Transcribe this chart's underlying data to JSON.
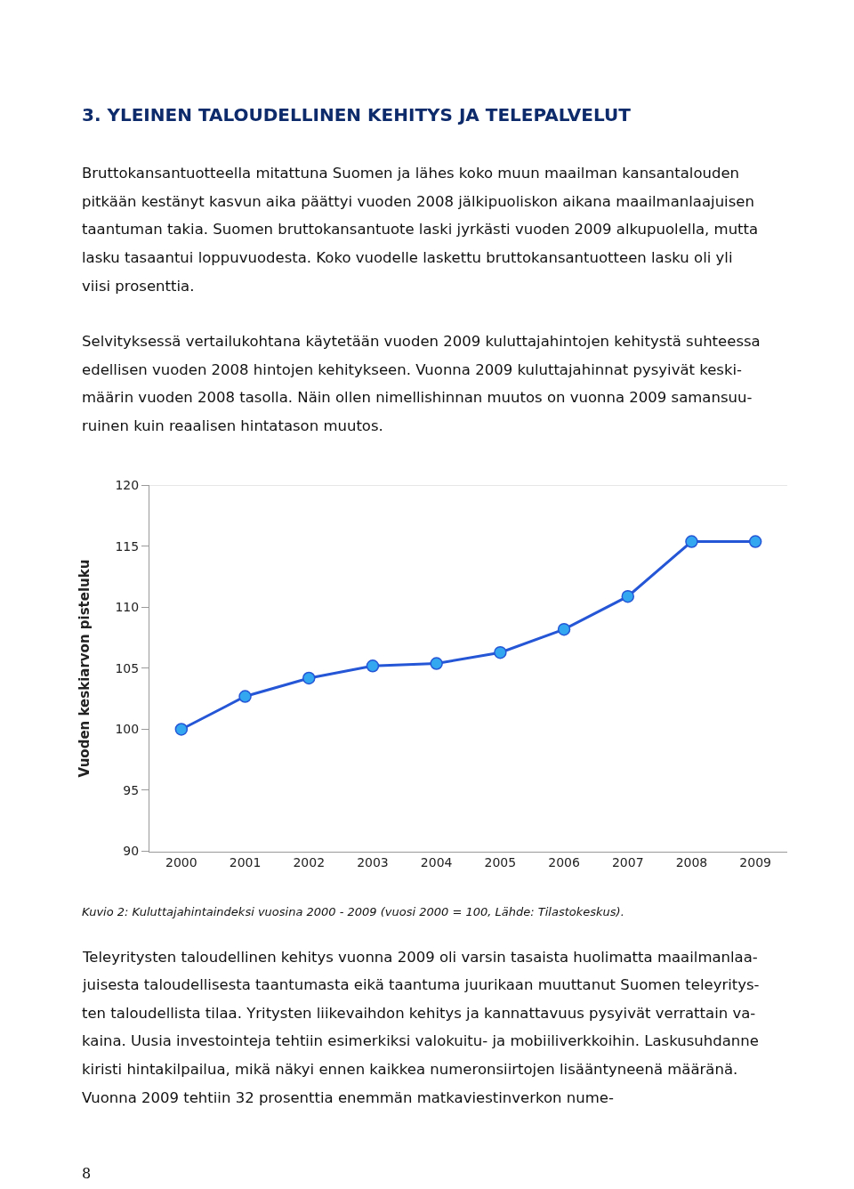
{
  "chart_data": {
    "type": "line",
    "title": "3. YLEINEN TALOUDELLINEN KEHITYS JA TELEPALVELUT",
    "ylabel": "Vuoden keskiarvon pisteluku",
    "categories": [
      "2000",
      "2001",
      "2002",
      "2003",
      "2004",
      "2005",
      "2006",
      "2007",
      "2008",
      "2009"
    ],
    "series": [
      {
        "color": "#2456d6",
        "values": [
          100.0,
          102.7,
          104.2,
          105.2,
          105.4,
          106.3,
          108.2,
          110.9,
          115.4,
          115.4
        ]
      }
    ],
    "ylim": [
      90,
      120
    ],
    "yticks": [
      90,
      95,
      100,
      105,
      110,
      115,
      120
    ],
    "grid": false,
    "marker": "circle",
    "line_style": "solid",
    "annotations": [
      "Bruttokansantuotteella mitattuna Suomen ja lähes koko muun maailman kansantalouden\npitkään kestänyt kasvun aika päättyi vuoden 2008 jälkipuoliskon aikana maailmanlaajuisen\ntaantuman takia. Suomen bruttokansantuote laski jyrkästi vuoden 2009 alkupuolella, mutta\nlasku tasaantui loppuvuodesta. Koko vuodelle laskettu bruttokansantuotteen lasku oli yli\nviisi prosenttia.",
      "Selvityksessä vertailukohtana käytetään vuoden 2009 kuluttajahintojen kehitystä suhteessa\nedellisen vuoden 2008 hintojen kehitykseen. Vuonna 2009 kuluttajahinnat pysyivät keski-\nmäärin vuoden 2008 tasolla. Näin ollen nimellishinnan muutos on vuonna 2009 samansuu-\nruinen kuin reaalisen hintatason muutos.",
      "Kuvio 2: Kuluttajahintaindeksi vuosina 2000 - 2009 (vuosi 2000 = 100, Lähde: Tilastokeskus).",
      "Teleyritysten taloudellinen kehitys vuonna 2009 oli varsin tasaista huolimatta maailmanlaa-\njuisesta taloudellisesta taantumasta eikä taantuma juurikaan muuttanut Suomen teleyritys-\nten taloudellista tilaa. Yritysten liikevaihdon kehitys ja kannattavuus pysyivät verrattain va-\nkaina. Uusia investointeja tehtiin esimerkiksi valokuitu- ja mobiiliverkkoihin. Laskusuhdanne\nkiristi hintakilpailua, mikä näkyi ennen kaikkea numeronsiirtojen lisääntyneenä määränä.\nVuonna 2009 tehtiin 32 prosenttia enemmän matkaviestinverkon nume-",
      "8"
    ]
  }
}
